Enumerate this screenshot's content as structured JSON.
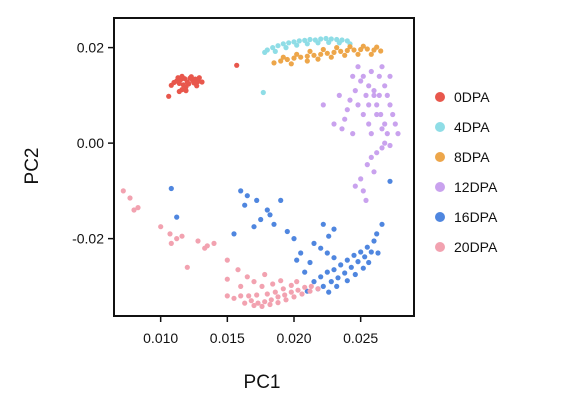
{
  "chart_data": {
    "type": "scatter",
    "title": "",
    "xlabel": "PC1",
    "ylabel": "PC2",
    "xlim": [
      0.0065,
      0.029
    ],
    "ylim": [
      -0.0362,
      0.0262
    ],
    "xticks": [
      {
        "value": 0.01,
        "label": "0.010"
      },
      {
        "value": 0.015,
        "label": "0.015"
      },
      {
        "value": 0.02,
        "label": "0.020"
      },
      {
        "value": 0.025,
        "label": "0.025"
      }
    ],
    "yticks": [
      {
        "value": 0.02,
        "label": "0.02"
      },
      {
        "value": 0.0,
        "label": "0.00"
      },
      {
        "value": -0.02,
        "label": "-0.02"
      }
    ],
    "grid": false,
    "legend_position": "right",
    "series": [
      {
        "name": "0DPA",
        "color": "#e8574c",
        "points": [
          [
            0.0112,
            0.013
          ],
          [
            0.0115,
            0.0133
          ],
          [
            0.0118,
            0.0135
          ],
          [
            0.012,
            0.0128
          ],
          [
            0.0122,
            0.0136
          ],
          [
            0.0124,
            0.0131
          ],
          [
            0.0126,
            0.0134
          ],
          [
            0.0128,
            0.0129
          ],
          [
            0.0114,
            0.0125
          ],
          [
            0.0117,
            0.0122
          ],
          [
            0.0121,
            0.0124
          ],
          [
            0.0125,
            0.0126
          ],
          [
            0.0127,
            0.012
          ],
          [
            0.0119,
            0.0118
          ],
          [
            0.0123,
            0.0139
          ],
          [
            0.0113,
            0.0137
          ],
          [
            0.0116,
            0.014
          ],
          [
            0.0129,
            0.0137
          ],
          [
            0.011,
            0.0127
          ],
          [
            0.0131,
            0.0128
          ],
          [
            0.0108,
            0.0121
          ],
          [
            0.0116,
            0.0112
          ],
          [
            0.0119,
            0.011
          ],
          [
            0.0114,
            0.0108
          ],
          [
            0.0106,
            0.0098
          ],
          [
            0.0157,
            0.0163
          ]
        ]
      },
      {
        "name": "4DPA",
        "color": "#8fdde6",
        "points": [
          [
            0.018,
            0.0195
          ],
          [
            0.0184,
            0.02
          ],
          [
            0.0188,
            0.0204
          ],
          [
            0.0192,
            0.0208
          ],
          [
            0.0196,
            0.021
          ],
          [
            0.02,
            0.0212
          ],
          [
            0.0204,
            0.0214
          ],
          [
            0.0208,
            0.0215
          ],
          [
            0.0212,
            0.0217
          ],
          [
            0.0216,
            0.0216
          ],
          [
            0.022,
            0.0218
          ],
          [
            0.0224,
            0.0219
          ],
          [
            0.0228,
            0.0218
          ],
          [
            0.0232,
            0.0217
          ],
          [
            0.0236,
            0.0216
          ],
          [
            0.024,
            0.0214
          ],
          [
            0.0186,
            0.0192
          ],
          [
            0.0194,
            0.02
          ],
          [
            0.0202,
            0.0205
          ],
          [
            0.021,
            0.0208
          ],
          [
            0.0218,
            0.021
          ],
          [
            0.0226,
            0.0211
          ],
          [
            0.0234,
            0.021
          ],
          [
            0.0178,
            0.019
          ],
          [
            0.0242,
            0.0208
          ],
          [
            0.0177,
            0.0106
          ]
        ]
      },
      {
        "name": "8DPA",
        "color": "#eda64a",
        "points": [
          [
            0.0185,
            0.0168
          ],
          [
            0.019,
            0.0172
          ],
          [
            0.0195,
            0.0175
          ],
          [
            0.02,
            0.0178
          ],
          [
            0.0205,
            0.018
          ],
          [
            0.021,
            0.0182
          ],
          [
            0.0215,
            0.0184
          ],
          [
            0.022,
            0.0186
          ],
          [
            0.0225,
            0.0188
          ],
          [
            0.023,
            0.019
          ],
          [
            0.0235,
            0.0192
          ],
          [
            0.024,
            0.0194
          ],
          [
            0.0245,
            0.0195
          ],
          [
            0.025,
            0.0196
          ],
          [
            0.0255,
            0.0197
          ],
          [
            0.026,
            0.0195
          ],
          [
            0.0265,
            0.0193
          ],
          [
            0.0232,
            0.02
          ],
          [
            0.0242,
            0.0202
          ],
          [
            0.0252,
            0.0203
          ],
          [
            0.0262,
            0.0201
          ],
          [
            0.0222,
            0.0196
          ],
          [
            0.0212,
            0.0192
          ],
          [
            0.0202,
            0.0186
          ],
          [
            0.0192,
            0.018
          ],
          [
            0.0248,
            0.0186
          ],
          [
            0.0258,
            0.0186
          ],
          [
            0.0238,
            0.0184
          ],
          [
            0.0228,
            0.018
          ],
          [
            0.0218,
            0.0176
          ],
          [
            0.021,
            0.0172
          ],
          [
            0.0198,
            0.0166
          ]
        ]
      },
      {
        "name": "12DPA",
        "color": "#c9a2ee",
        "points": [
          [
            0.0248,
            0.016
          ],
          [
            0.0252,
            0.014
          ],
          [
            0.0256,
            0.012
          ],
          [
            0.026,
            0.01
          ],
          [
            0.0262,
            0.008
          ],
          [
            0.0265,
            0.006
          ],
          [
            0.0268,
            0.004
          ],
          [
            0.027,
            0.002
          ],
          [
            0.0268,
            0.0
          ],
          [
            0.0266,
            -0.001
          ],
          [
            0.0262,
            -0.002
          ],
          [
            0.0258,
            -0.003
          ],
          [
            0.0255,
            -0.0045
          ],
          [
            0.027,
            0.01
          ],
          [
            0.0272,
            0.008
          ],
          [
            0.0274,
            0.006
          ],
          [
            0.0268,
            0.012
          ],
          [
            0.0264,
            0.014
          ],
          [
            0.0258,
            0.015
          ],
          [
            0.025,
            0.013
          ],
          [
            0.0246,
            0.011
          ],
          [
            0.0242,
            0.009
          ],
          [
            0.024,
            0.007
          ],
          [
            0.0238,
            0.005
          ],
          [
            0.0236,
            0.003
          ],
          [
            0.0248,
            0.008
          ],
          [
            0.0252,
            0.006
          ],
          [
            0.0256,
            0.004
          ],
          [
            0.0258,
            0.002
          ],
          [
            0.0276,
            0.004
          ],
          [
            0.0278,
            0.002
          ],
          [
            0.0272,
            -0.0005
          ],
          [
            0.0264,
            0.01
          ],
          [
            0.026,
            0.011
          ],
          [
            0.0254,
            0.01
          ],
          [
            0.0256,
            0.008
          ],
          [
            0.0262,
            0.006
          ],
          [
            0.0266,
            0.003
          ],
          [
            0.0244,
            0.002
          ],
          [
            0.023,
            0.004
          ],
          [
            0.0222,
            0.008
          ],
          [
            0.026,
            -0.006
          ],
          [
            0.025,
            -0.0075
          ],
          [
            0.0252,
            -0.01
          ],
          [
            0.0254,
            -0.012
          ],
          [
            0.0246,
            -0.009
          ],
          [
            0.0266,
            0.016
          ],
          [
            0.0272,
            0.014
          ],
          [
            0.0244,
            0.014
          ],
          [
            0.0234,
            0.01
          ]
        ]
      },
      {
        "name": "16DPA",
        "color": "#4f86df",
        "points": [
          [
            0.0215,
            -0.029
          ],
          [
            0.022,
            -0.028
          ],
          [
            0.0225,
            -0.027
          ],
          [
            0.023,
            -0.0265
          ],
          [
            0.0235,
            -0.0255
          ],
          [
            0.024,
            -0.0245
          ],
          [
            0.0245,
            -0.0235
          ],
          [
            0.025,
            -0.0228
          ],
          [
            0.0255,
            -0.0218
          ],
          [
            0.026,
            -0.0205
          ],
          [
            0.0218,
            -0.0305
          ],
          [
            0.0222,
            -0.03
          ],
          [
            0.0228,
            -0.029
          ],
          [
            0.0233,
            -0.0282
          ],
          [
            0.0238,
            -0.0272
          ],
          [
            0.0243,
            -0.026
          ],
          [
            0.0248,
            -0.0248
          ],
          [
            0.0253,
            -0.0238
          ],
          [
            0.0258,
            -0.0228
          ],
          [
            0.021,
            -0.031
          ],
          [
            0.0226,
            -0.0312
          ],
          [
            0.0232,
            -0.03
          ],
          [
            0.024,
            -0.0288
          ],
          [
            0.0246,
            -0.0275
          ],
          [
            0.0252,
            -0.0262
          ],
          [
            0.0256,
            -0.025
          ],
          [
            0.023,
            -0.024
          ],
          [
            0.0225,
            -0.023
          ],
          [
            0.022,
            -0.022
          ],
          [
            0.0212,
            -0.025
          ],
          [
            0.0215,
            -0.021
          ],
          [
            0.0205,
            -0.023
          ],
          [
            0.023,
            -0.018
          ],
          [
            0.0222,
            -0.017
          ],
          [
            0.0226,
            -0.0195
          ],
          [
            0.0262,
            -0.019
          ],
          [
            0.0266,
            -0.017
          ],
          [
            0.0272,
            -0.008
          ],
          [
            0.018,
            -0.014
          ],
          [
            0.0182,
            -0.015
          ],
          [
            0.0175,
            -0.016
          ],
          [
            0.017,
            -0.0175
          ],
          [
            0.0163,
            -0.013
          ],
          [
            0.0172,
            -0.012
          ],
          [
            0.0185,
            -0.017
          ],
          [
            0.0195,
            -0.0185
          ],
          [
            0.02,
            -0.02
          ],
          [
            0.0202,
            -0.0245
          ],
          [
            0.0155,
            -0.019
          ],
          [
            0.0165,
            -0.011
          ],
          [
            0.016,
            -0.01
          ],
          [
            0.0108,
            -0.0095
          ],
          [
            0.0112,
            -0.0155
          ],
          [
            0.019,
            -0.012
          ],
          [
            0.0208,
            -0.027
          ],
          [
            0.0263,
            -0.023
          ]
        ]
      },
      {
        "name": "20DPA",
        "color": "#f2a2b0",
        "points": [
          [
            0.0168,
            -0.033
          ],
          [
            0.0173,
            -0.0335
          ],
          [
            0.0178,
            -0.0332
          ],
          [
            0.0183,
            -0.0328
          ],
          [
            0.0188,
            -0.0322
          ],
          [
            0.0193,
            -0.0318
          ],
          [
            0.0198,
            -0.0312
          ],
          [
            0.0203,
            -0.0308
          ],
          [
            0.0208,
            -0.0302
          ],
          [
            0.0213,
            -0.03
          ],
          [
            0.017,
            -0.034
          ],
          [
            0.0176,
            -0.0342
          ],
          [
            0.0182,
            -0.0338
          ],
          [
            0.0188,
            -0.0334
          ],
          [
            0.0194,
            -0.0328
          ],
          [
            0.02,
            -0.0322
          ],
          [
            0.0206,
            -0.0316
          ],
          [
            0.0212,
            -0.031
          ],
          [
            0.0166,
            -0.032
          ],
          [
            0.0172,
            -0.0318
          ],
          [
            0.018,
            -0.0316
          ],
          [
            0.0186,
            -0.0312
          ],
          [
            0.0192,
            -0.0305
          ],
          [
            0.0198,
            -0.0298
          ],
          [
            0.016,
            -0.032
          ],
          [
            0.0155,
            -0.0325
          ],
          [
            0.0176,
            -0.03
          ],
          [
            0.017,
            -0.029
          ],
          [
            0.0165,
            -0.028
          ],
          [
            0.0184,
            -0.0295
          ],
          [
            0.019,
            -0.0288
          ],
          [
            0.0178,
            -0.0275
          ],
          [
            0.016,
            -0.03
          ],
          [
            0.0202,
            -0.029
          ],
          [
            0.0072,
            -0.01
          ],
          [
            0.0077,
            -0.0115
          ],
          [
            0.0083,
            -0.0135
          ],
          [
            0.008,
            -0.014
          ],
          [
            0.01,
            -0.0175
          ],
          [
            0.0107,
            -0.019
          ],
          [
            0.0112,
            -0.02
          ],
          [
            0.0108,
            -0.021
          ],
          [
            0.0116,
            -0.0195
          ],
          [
            0.0128,
            -0.0205
          ],
          [
            0.0135,
            -0.0215
          ],
          [
            0.014,
            -0.021
          ],
          [
            0.0133,
            -0.022
          ],
          [
            0.012,
            -0.026
          ],
          [
            0.015,
            -0.0245
          ],
          [
            0.0158,
            -0.0265
          ],
          [
            0.015,
            -0.032
          ],
          [
            0.0163,
            -0.0335
          ],
          [
            0.0218,
            -0.0305
          ],
          [
            0.015,
            -0.0285
          ]
        ]
      }
    ]
  }
}
